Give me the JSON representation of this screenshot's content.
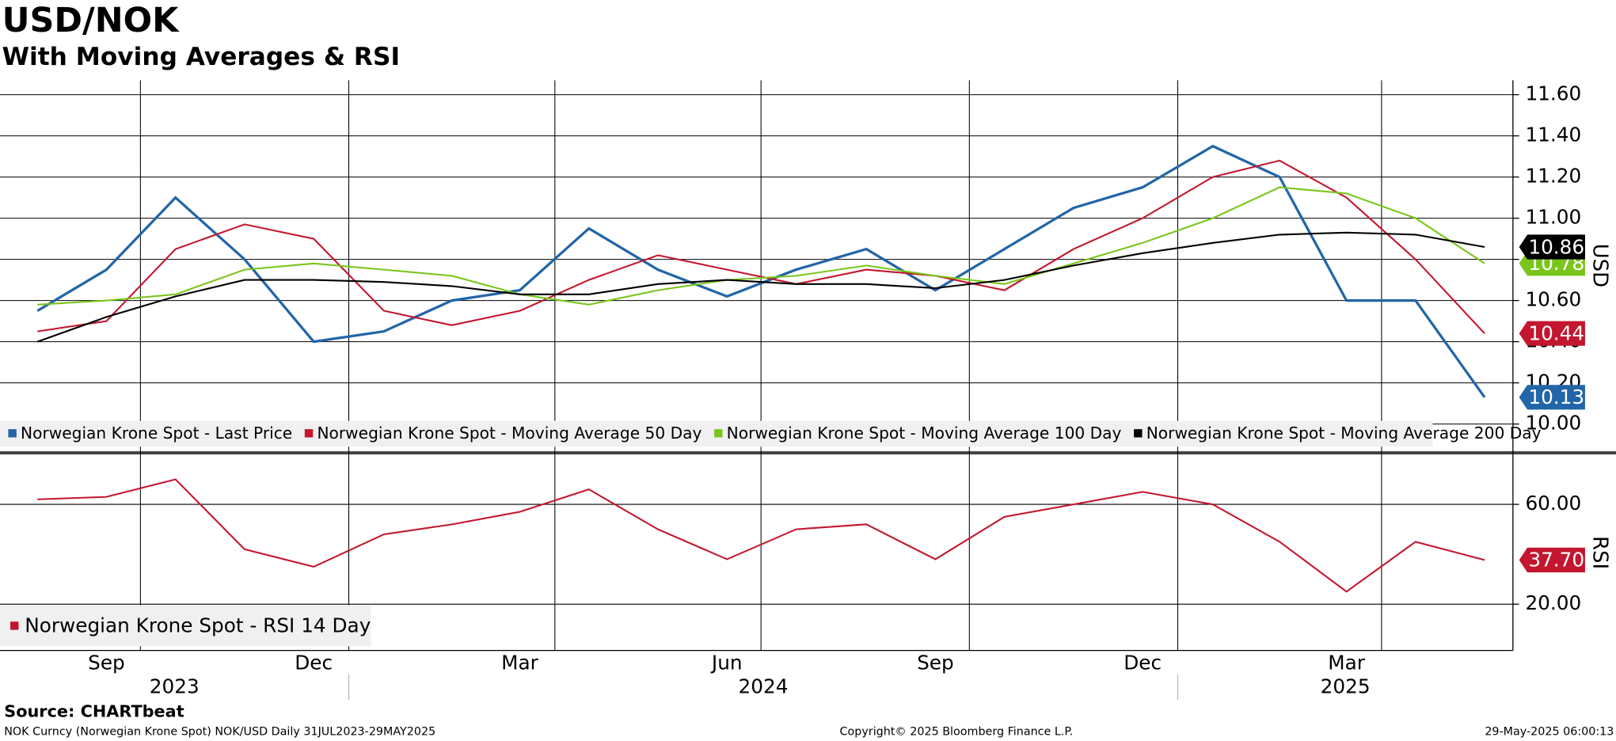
{
  "chart_data": [
    {
      "type": "line",
      "title": "USD/NOK",
      "subtitle": "With Moving Averages & RSI",
      "y_label": "USD",
      "x": [
        "2023-08",
        "2023-09",
        "2023-10",
        "2023-11",
        "2023-12",
        "2024-01",
        "2024-02",
        "2024-03",
        "2024-04",
        "2024-05",
        "2024-06",
        "2024-07",
        "2024-08",
        "2024-09",
        "2024-10",
        "2024-11",
        "2024-12",
        "2025-01",
        "2025-02",
        "2025-03",
        "2025-04",
        "2025-05"
      ],
      "xlim": [
        "2023-07-31",
        "2025-05-29"
      ],
      "xticks": [
        {
          "value": "2023-09",
          "label": "Sep"
        },
        {
          "value": "2023-12",
          "label": "Dec"
        },
        {
          "value": "2024-03",
          "label": "Mar"
        },
        {
          "value": "2024-06",
          "label": "Jun"
        },
        {
          "value": "2024-09",
          "label": "Sep"
        },
        {
          "value": "2024-12",
          "label": "Dec"
        },
        {
          "value": "2025-03",
          "label": "Mar"
        }
      ],
      "years": [
        "2023",
        "2024",
        "2025"
      ],
      "ylim": [
        9.875,
        11.67
      ],
      "yticks": [
        {
          "value": 10,
          "label": "10.00"
        },
        {
          "value": 10.2,
          "label": "10.20"
        },
        {
          "value": 10.4,
          "label": "10.40"
        },
        {
          "value": 10.6,
          "label": "10.60"
        },
        {
          "value": 10.8,
          "label": "10.80"
        },
        {
          "value": 11,
          "label": "11.00"
        },
        {
          "value": 11.2,
          "label": "11.20"
        },
        {
          "value": 11.4,
          "label": "11.40"
        },
        {
          "value": 11.6,
          "label": "11.60"
        }
      ],
      "grid": true,
      "series": [
        {
          "name": "Norwegian Krone Spot - Last Price",
          "color": "#2265a8",
          "values": [
            10.55,
            10.75,
            11.1,
            10.8,
            10.4,
            10.45,
            10.6,
            10.65,
            10.95,
            10.75,
            10.62,
            10.75,
            10.85,
            10.65,
            10.85,
            11.05,
            11.15,
            11.35,
            11.2,
            10.6,
            10.6,
            10.13
          ]
        },
        {
          "name": "Norwegian Krone Spot - Moving Average 50 Day",
          "color": "#c3162f",
          "values": [
            10.45,
            10.5,
            10.85,
            10.97,
            10.9,
            10.55,
            10.48,
            10.55,
            10.7,
            10.82,
            10.75,
            10.68,
            10.75,
            10.72,
            10.65,
            10.85,
            11.0,
            11.2,
            11.28,
            11.1,
            10.8,
            10.44
          ]
        },
        {
          "name": "Norwegian Krone Spot - Moving Average 100 Day",
          "color": "#7ac51c",
          "values": [
            10.58,
            10.6,
            10.63,
            10.75,
            10.78,
            10.75,
            10.72,
            10.63,
            10.58,
            10.65,
            10.7,
            10.72,
            10.77,
            10.72,
            10.68,
            10.78,
            10.88,
            11.0,
            11.15,
            11.12,
            11.0,
            10.78
          ]
        },
        {
          "name": "Norwegian Krone Spot - Moving Average 200 Day",
          "color": "#000000",
          "values": [
            10.4,
            10.52,
            10.62,
            10.7,
            10.7,
            10.69,
            10.67,
            10.63,
            10.63,
            10.68,
            10.7,
            10.68,
            10.68,
            10.66,
            10.7,
            10.77,
            10.83,
            10.88,
            10.92,
            10.93,
            10.92,
            10.86
          ]
        }
      ]
    },
    {
      "type": "line",
      "y_label": "RSI",
      "ylim": [
        2.3,
        79.4
      ],
      "yticks": [
        {
          "value": 20,
          "label": "20.00"
        },
        {
          "value": 60,
          "label": "60.00"
        }
      ],
      "grid": true,
      "series": [
        {
          "name": "Norwegian Krone Spot - RSI 14 Day",
          "color": "#c3162f",
          "values": [
            62,
            63,
            70,
            42,
            35,
            48,
            52,
            57,
            66,
            50,
            38,
            50,
            52,
            38,
            55,
            60,
            65,
            60,
            45,
            25,
            45,
            37.7
          ],
          "value_labels": [
            null,
            null,
            null,
            null,
            null,
            null,
            null,
            null,
            null,
            null,
            null,
            null,
            null,
            null,
            null,
            null,
            null,
            null,
            null,
            null,
            null,
            "37.70"
          ]
        }
      ]
    }
  ],
  "source": "Source: CHARTbeat",
  "footer": {
    "left": "NOK Curncy (Norwegian Krone Spot) NOK/USD  Daily 31JUL2023-29MAY2025",
    "center": "Copyright© 2025 Bloomberg Finance L.P.",
    "right": "29-May-2025 06:00:13"
  }
}
